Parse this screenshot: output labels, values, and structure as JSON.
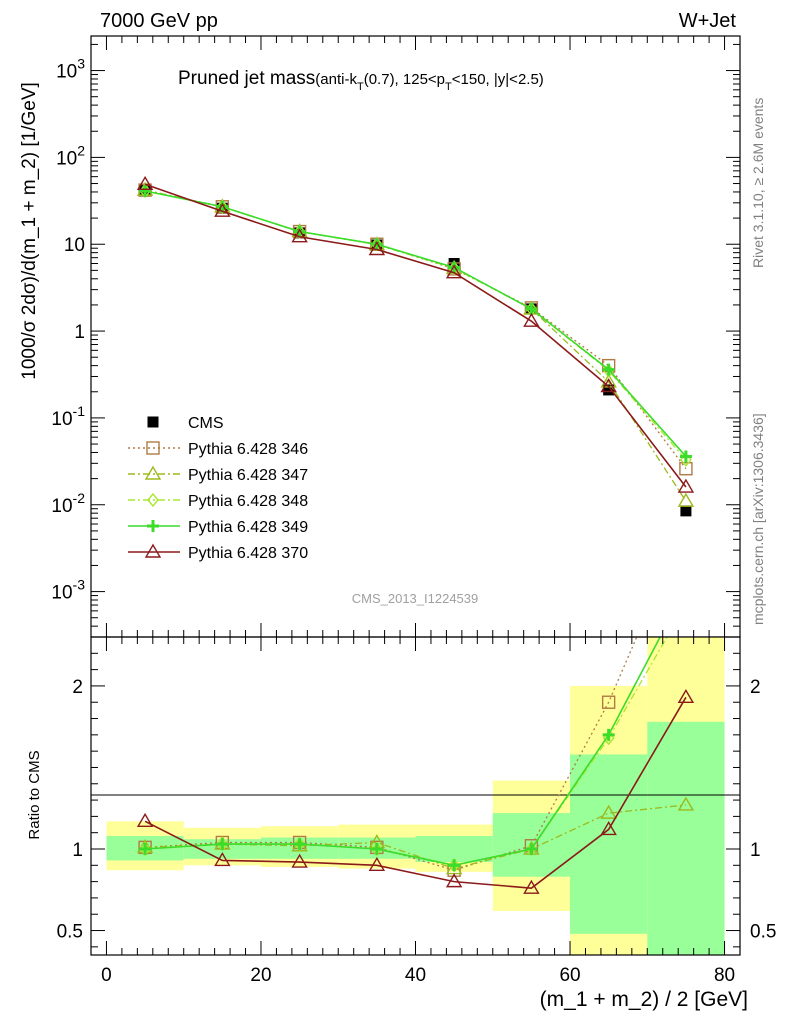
{
  "header": {
    "left": "7000 GeV pp",
    "right": "W+Jet"
  },
  "title": {
    "main": "Pruned jet mass",
    "detail": "(anti-k_T(0.7), 125<p_T<150, |y|<2.5)"
  },
  "side_labels": {
    "rivet": "Rivet 3.1.10, ≥ 2.6M events",
    "mcplots": "mcplots.cern.ch [arXiv:1306.3436]"
  },
  "watermark": "CMS_2013_I1224539",
  "colors": {
    "cms": "#000000",
    "p346": "#b07a45",
    "p347": "#9bba1e",
    "p348": "#a8e830",
    "p349": "#3bdc2a",
    "p370": "#8b1a1a",
    "band_yellow": "#ffff99",
    "band_green": "#99ff99"
  },
  "chart_data": [
    {
      "type": "line",
      "panel": "main",
      "ylabel": "1000/σ 2dσ)/d(m_1 + m_2) [1/GeV]",
      "yscale": "log",
      "xlim": [
        -2,
        82
      ],
      "ylim": [
        0.0003,
        2500
      ],
      "y_ticks": [
        {
          "value": 0.001,
          "label": "10^-3"
        },
        {
          "value": 0.01,
          "label": "10^-2"
        },
        {
          "value": 0.1,
          "label": "10^-1"
        },
        {
          "value": 1,
          "label": "1"
        },
        {
          "value": 10,
          "label": "10"
        },
        {
          "value": 100,
          "label": "10^2"
        },
        {
          "value": 1000,
          "label": "10^3"
        }
      ],
      "x": [
        5,
        15,
        25,
        35,
        45,
        55,
        65,
        75
      ],
      "series": [
        {
          "name": "CMS",
          "key": "cms",
          "marker": "square",
          "line": "none",
          "values": [
            42,
            26,
            13.5,
            9.8,
            6.0,
            1.8,
            0.21,
            0.0085
          ]
        },
        {
          "name": "Pythia 6.428 346",
          "key": "p346",
          "marker": "open-square",
          "line": "dotted",
          "values": [
            42,
            27,
            14,
            10,
            5.2,
            1.85,
            0.4,
            0.026
          ]
        },
        {
          "name": "Pythia 6.428 347",
          "key": "p347",
          "marker": "open-triangle",
          "line": "dashdot",
          "values": [
            42,
            27,
            14,
            9.9,
            5.3,
            1.8,
            0.26,
            0.011
          ]
        },
        {
          "name": "Pythia 6.428 348",
          "key": "p348",
          "marker": "diamond",
          "line": "dashdot",
          "values": [
            41,
            27,
            14,
            10,
            5.3,
            1.8,
            0.35,
            0.033
          ]
        },
        {
          "name": "Pythia 6.428 349",
          "key": "p349",
          "marker": "cross",
          "line": "solid",
          "values": [
            41,
            27,
            14,
            10,
            5.4,
            1.8,
            0.36,
            0.036
          ]
        },
        {
          "name": "Pythia 6.428 370",
          "key": "p370",
          "marker": "open-triangle",
          "line": "solid",
          "values": [
            49,
            24,
            12.2,
            8.7,
            4.7,
            1.3,
            0.23,
            0.016
          ]
        }
      ]
    },
    {
      "type": "line",
      "panel": "ratio",
      "xlabel": "(m_1 + m_2) / 2 [GeV]",
      "ylabel": "Ratio to CMS",
      "xlim": [
        -2,
        82
      ],
      "ylim": [
        0.35,
        2.3
      ],
      "x_ticks": [
        0,
        20,
        40,
        60,
        80
      ],
      "y_ticks": [
        0.5,
        1,
        2
      ],
      "bins": [
        [
          0,
          10
        ],
        [
          10,
          20
        ],
        [
          20,
          30
        ],
        [
          30,
          40
        ],
        [
          40,
          50
        ],
        [
          50,
          60
        ],
        [
          60,
          70
        ],
        [
          70,
          80
        ]
      ],
      "band_yellow": [
        [
          0.87,
          1.17
        ],
        [
          0.9,
          1.13
        ],
        [
          0.89,
          1.14
        ],
        [
          0.88,
          1.15
        ],
        [
          0.86,
          1.15
        ],
        [
          0.62,
          1.42
        ],
        [
          0.0,
          2.0
        ],
        [
          0.0,
          2.3
        ]
      ],
      "band_green": [
        [
          0.93,
          1.08
        ],
        [
          0.94,
          1.06
        ],
        [
          0.94,
          1.07
        ],
        [
          0.94,
          1.07
        ],
        [
          0.92,
          1.08
        ],
        [
          0.83,
          1.22
        ],
        [
          0.48,
          1.58
        ],
        [
          0.0,
          1.78
        ]
      ],
      "reference": 1,
      "x": [
        5,
        15,
        25,
        35,
        45,
        55,
        65,
        75
      ],
      "series": [
        {
          "name": "Pythia 6.428 346",
          "key": "p346",
          "values": [
            1.01,
            1.04,
            1.04,
            1.01,
            0.87,
            1.02,
            1.9,
            3.0
          ]
        },
        {
          "name": "Pythia 6.428 347",
          "key": "p347",
          "values": [
            1.01,
            1.03,
            1.02,
            1.04,
            0.88,
            1.0,
            1.22,
            1.27
          ]
        },
        {
          "name": "Pythia 6.428 348",
          "key": "p348",
          "values": [
            1.0,
            1.03,
            1.03,
            1.0,
            0.9,
            1.0,
            1.68,
            2.5
          ]
        },
        {
          "name": "Pythia 6.428 349",
          "key": "p349",
          "values": [
            1.0,
            1.03,
            1.03,
            1.0,
            0.9,
            1.0,
            1.7,
            2.6
          ]
        },
        {
          "name": "Pythia 6.428 370",
          "key": "p370",
          "values": [
            1.17,
            0.93,
            0.92,
            0.9,
            0.8,
            0.76,
            1.12,
            1.93
          ]
        }
      ]
    }
  ]
}
